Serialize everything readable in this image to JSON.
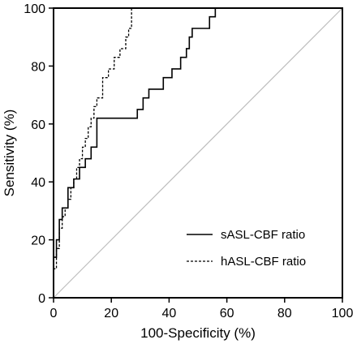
{
  "chart_data": {
    "type": "line",
    "xlabel": "100-Specificity (%)",
    "ylabel": "Sensitivity (%)",
    "xlim": [
      0,
      100
    ],
    "ylim": [
      0,
      100
    ],
    "xticks": [
      "0",
      "20",
      "40",
      "60",
      "80",
      "100"
    ],
    "yticks": [
      "0",
      "20",
      "40",
      "60",
      "80",
      "100"
    ],
    "grid": false,
    "legend_position": "lower-right",
    "reference_line": {
      "x": [
        0,
        100
      ],
      "y": [
        0,
        100
      ],
      "color": "#bdbdbd"
    },
    "series": [
      {
        "name": "sASL-CBF ratio",
        "style": "solid",
        "color": "#000000",
        "x": [
          0,
          0,
          1,
          1,
          2,
          2,
          3,
          3,
          5,
          5,
          7,
          7,
          9,
          9,
          11,
          11,
          13,
          13,
          15,
          15,
          29,
          29,
          31,
          31,
          33,
          33,
          38,
          38,
          41,
          41,
          44,
          44,
          46,
          46,
          47,
          47,
          48,
          48,
          54,
          54,
          56,
          56,
          58,
          58,
          59,
          59,
          61,
          61,
          62,
          62,
          66,
          66,
          100
        ],
        "y": [
          0,
          14,
          14,
          20,
          20,
          27,
          27,
          31,
          31,
          38,
          38,
          41,
          41,
          45,
          45,
          48,
          48,
          52,
          52,
          62,
          62,
          65,
          65,
          69,
          69,
          72,
          72,
          76,
          76,
          79,
          79,
          83,
          83,
          86,
          86,
          90,
          90,
          93,
          93,
          97,
          97,
          100,
          100,
          100,
          100,
          100,
          100,
          100,
          100,
          100,
          100,
          100,
          100
        ]
      },
      {
        "name": "hASL-CBF ratio",
        "style": "dashed",
        "color": "#000000",
        "x": [
          0,
          0,
          1,
          1,
          2,
          2,
          3,
          3,
          4,
          4,
          5,
          5,
          6,
          6,
          7,
          7,
          8,
          8,
          9,
          9,
          10,
          10,
          11,
          11,
          12,
          12,
          13,
          13,
          14,
          14,
          15,
          15,
          17,
          17,
          19,
          19,
          21,
          21,
          23,
          23,
          25,
          25,
          26,
          26,
          27,
          27,
          100
        ],
        "y": [
          0,
          10,
          10,
          17,
          17,
          24,
          24,
          28,
          28,
          31,
          31,
          34,
          34,
          38,
          38,
          41,
          41,
          45,
          45,
          48,
          48,
          52,
          52,
          55,
          55,
          59,
          59,
          62,
          62,
          66,
          66,
          69,
          69,
          76,
          76,
          79,
          79,
          83,
          83,
          86,
          86,
          90,
          90,
          93,
          93,
          100,
          100
        ]
      }
    ]
  }
}
